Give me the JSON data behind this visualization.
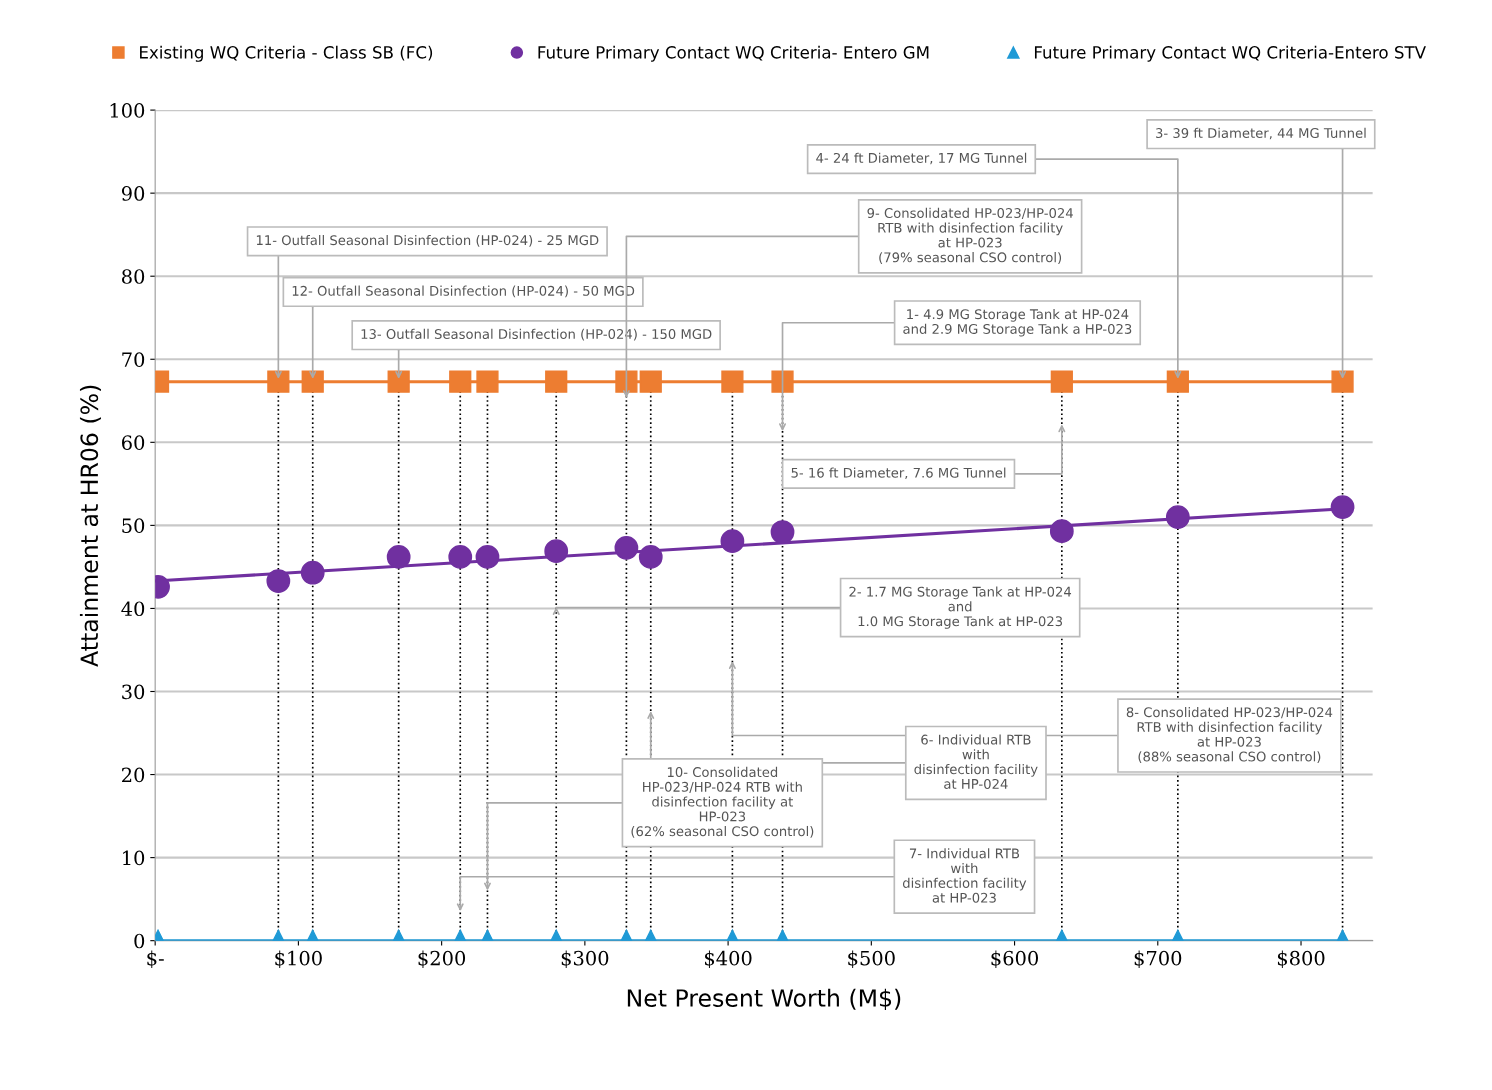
{
  "chart_data": {
    "type": "line",
    "xlabel": "Net Present Worth (M$)",
    "ylabel": "Attainment at HR06 (%)",
    "x": [
      2,
      86,
      110,
      170,
      213,
      232,
      280,
      329,
      346,
      403,
      438,
      633,
      714,
      829
    ],
    "series": [
      {
        "name": "Existing WQ Criteria - Class SB (FC)",
        "color": "#ed7d31",
        "marker": "square",
        "values": [
          67.3,
          67.3,
          67.3,
          67.3,
          67.3,
          67.3,
          67.3,
          67.3,
          67.3,
          67.3,
          67.3,
          67.3,
          67.3,
          67.3
        ]
      },
      {
        "name": "Future Primary Contact WQ Criteria- Entero GM",
        "type": "scatter",
        "color": "#7030a0",
        "marker": "circle",
        "values": [
          42.6,
          43.3,
          44.3,
          46.2,
          46.2,
          46.2,
          46.9,
          47.3,
          46.2,
          48.1,
          49.2,
          49.3,
          51.0,
          52.2
        ]
      },
      {
        "name": "Future Primary Contact WQ Criteria-Entero STV",
        "color": "#1f9ad6",
        "marker": "triangle",
        "values": [
          0,
          0,
          0,
          0,
          0,
          0,
          0,
          0,
          0,
          0,
          0,
          0,
          0,
          0
        ]
      },
      {
        "type": "line",
        "color": "#7030a0",
        "marker": "none",
        "x": [
          0,
          829
        ],
        "values": [
          43.3,
          52.0
        ]
      }
    ],
    "xlim": [
      0,
      850
    ],
    "ylim": [
      0,
      100
    ],
    "xticks": [
      {
        "value": 0,
        "label": "$-"
      },
      {
        "value": 100,
        "label": "$100"
      },
      {
        "value": 200,
        "label": "$200"
      },
      {
        "value": 300,
        "label": "$300"
      },
      {
        "value": 400,
        "label": "$400"
      },
      {
        "value": 500,
        "label": "$500"
      },
      {
        "value": 600,
        "label": "$600"
      },
      {
        "value": 700,
        "label": "$700"
      },
      {
        "value": 800,
        "label": "$800"
      }
    ],
    "yticks": [
      0,
      10,
      20,
      30,
      40,
      50,
      60,
      70,
      80,
      90,
      100
    ],
    "grid": "y",
    "legend": "top",
    "ref_lines": [
      {
        "axis": "x",
        "value": 86,
        "color": "#000000",
        "line_style": "dotted"
      },
      {
        "axis": "x",
        "value": 110,
        "color": "#000000",
        "line_style": "dotted"
      },
      {
        "axis": "x",
        "value": 170,
        "color": "#000000",
        "line_style": "dotted"
      },
      {
        "axis": "x",
        "value": 213,
        "color": "#000000",
        "line_style": "dotted"
      },
      {
        "axis": "x",
        "value": 232,
        "color": "#000000",
        "line_style": "dotted"
      },
      {
        "axis": "x",
        "value": 280,
        "color": "#000000",
        "line_style": "dotted"
      },
      {
        "axis": "x",
        "value": 329,
        "color": "#000000",
        "line_style": "dotted"
      },
      {
        "axis": "x",
        "value": 346,
        "color": "#000000",
        "line_style": "dotted"
      },
      {
        "axis": "x",
        "value": 403,
        "color": "#000000",
        "line_style": "dotted"
      },
      {
        "axis": "x",
        "value": 438,
        "color": "#000000",
        "line_style": "dotted"
      },
      {
        "axis": "x",
        "value": 633,
        "color": "#000000",
        "line_style": "dotted"
      },
      {
        "axis": "x",
        "value": 714,
        "color": "#000000",
        "line_style": "dotted"
      },
      {
        "axis": "x",
        "value": 829,
        "color": "#000000",
        "line_style": "dotted"
      }
    ],
    "annotations": [
      {
        "text": "11- Outfall Seasonal Disinfection (HP-024) - 25 MGD",
        "x": 86,
        "y": 67.3
      },
      {
        "text": "12- Outfall Seasonal Disinfection (HP-024) - 50 MGD",
        "x": 110,
        "y": 67.3
      },
      {
        "text": "13- Outfall Seasonal Disinfection (HP-024) - 150 MGD",
        "x": 170,
        "y": 67.3
      },
      {
        "text": "4- 24 ft Diameter, 17 MG Tunnel",
        "x": 714,
        "y": 67.3
      },
      {
        "text": "3- 39 ft Diameter, 44 MG Tunnel",
        "x": 829,
        "y": 67.3
      },
      {
        "text": "9- Consolidated HP-023/HP-024\nRTB with disinfection facility\nat HP-023\n(79% seasonal CSO control)",
        "x": 329,
        "y": 65
      },
      {
        "text": "1- 4.9 MG Storage Tank at HP-024\nand 2.9 MG Storage Tank a HP-023",
        "x": 438,
        "y": 61
      },
      {
        "text": "5- 16 ft Diameter, 7.6 MG Tunnel",
        "x": 633,
        "y": 62.5
      },
      {
        "text": "2- 1.7 MG Storage Tank at HP-024\nand\n1.0 MG Storage Tank at HP-023",
        "x": 280,
        "y": 40.5
      },
      {
        "text": "8- Consolidated HP-023/HP-024\nRTB with disinfection facility\nat HP-023\n(88% seasonal CSO control)",
        "x": 403,
        "y": 34
      },
      {
        "text": "6- Individual RTB\nwith\ndisinfection facility\nat HP-024",
        "x": 346,
        "y": 28
      },
      {
        "text": "10- Consolidated\nHP-023/HP-024 RTB with\ndisinfection facility at\nHP-023\n(62% seasonal CSO control)",
        "x": 232,
        "y": 5.7
      },
      {
        "text": "7- Individual RTB\nwith\ndisinfection facility\nat HP-023",
        "x": 213,
        "y": 3.2
      }
    ]
  }
}
